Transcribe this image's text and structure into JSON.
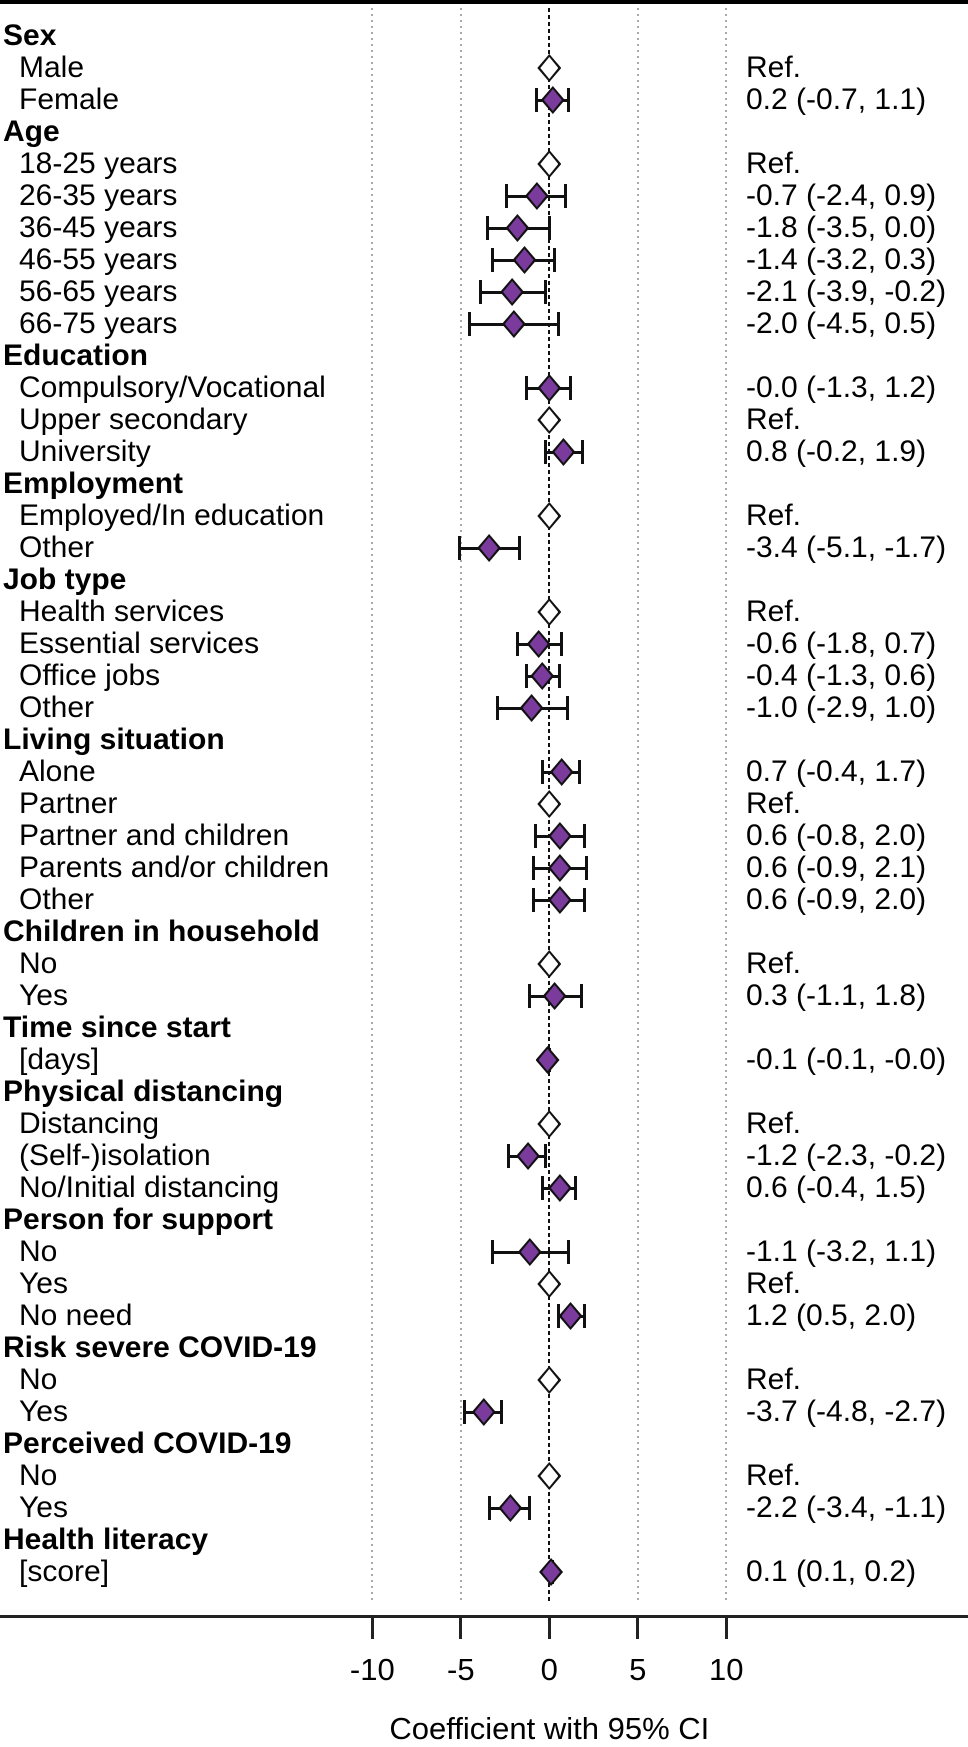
{
  "chart_data": {
    "type": "forest",
    "xlabel": "Coefficient with 95% CI",
    "x_ticks": [
      -10,
      -5,
      0,
      5,
      10
    ],
    "x_tick_labels": [
      "-10",
      "-5",
      "0",
      "5",
      "10"
    ],
    "xlim": [
      -13,
      12
    ],
    "grid": "vertical-dotted",
    "ref_text": "Ref.",
    "colors": {
      "marker_fill": "#7A3B9D",
      "ref_marker_fill": "#ffffff",
      "marker_outline": "#111111",
      "zero_line": "#111111",
      "minor_gridline": "#a9a9a9",
      "axis": "#222222"
    },
    "groups": [
      {
        "label": "Sex",
        "items": [
          {
            "label": "Male",
            "ref": true,
            "text": "Ref."
          },
          {
            "label": "Female",
            "est": 0.2,
            "lo": -0.7,
            "hi": 1.1,
            "text": "0.2 (-0.7, 1.1)"
          }
        ]
      },
      {
        "label": "Age",
        "items": [
          {
            "label": "18-25 years",
            "ref": true,
            "text": "Ref."
          },
          {
            "label": "26-35 years",
            "est": -0.7,
            "lo": -2.4,
            "hi": 0.9,
            "text": "-0.7 (-2.4, 0.9)"
          },
          {
            "label": "36-45 years",
            "est": -1.8,
            "lo": -3.5,
            "hi": 0.0,
            "text": "-1.8 (-3.5, 0.0)"
          },
          {
            "label": "46-55 years",
            "est": -1.4,
            "lo": -3.2,
            "hi": 0.3,
            "text": "-1.4 (-3.2, 0.3)"
          },
          {
            "label": "56-65 years",
            "est": -2.1,
            "lo": -3.9,
            "hi": -0.2,
            "text": "-2.1 (-3.9, -0.2)"
          },
          {
            "label": "66-75 years",
            "est": -2.0,
            "lo": -4.5,
            "hi": 0.5,
            "text": "-2.0 (-4.5, 0.5)"
          }
        ]
      },
      {
        "label": "Education",
        "items": [
          {
            "label": "Compulsory/Vocational",
            "est": 0.0,
            "lo": -1.3,
            "hi": 1.2,
            "text": "-0.0 (-1.3, 1.2)"
          },
          {
            "label": "Upper secondary",
            "ref": true,
            "text": "Ref."
          },
          {
            "label": "University",
            "est": 0.8,
            "lo": -0.2,
            "hi": 1.9,
            "text": "0.8 (-0.2, 1.9)"
          }
        ]
      },
      {
        "label": "Employment",
        "items": [
          {
            "label": "Employed/In education",
            "ref": true,
            "text": "Ref."
          },
          {
            "label": "Other",
            "est": -3.4,
            "lo": -5.1,
            "hi": -1.7,
            "text": "-3.4 (-5.1, -1.7)"
          }
        ]
      },
      {
        "label": "Job type",
        "items": [
          {
            "label": "Health services",
            "ref": true,
            "text": "Ref."
          },
          {
            "label": "Essential services",
            "est": -0.6,
            "lo": -1.8,
            "hi": 0.7,
            "text": "-0.6 (-1.8, 0.7)"
          },
          {
            "label": "Office jobs",
            "est": -0.4,
            "lo": -1.3,
            "hi": 0.6,
            "text": "-0.4 (-1.3, 0.6)"
          },
          {
            "label": "Other",
            "est": -1.0,
            "lo": -2.9,
            "hi": 1.0,
            "text": "-1.0 (-2.9, 1.0)"
          }
        ]
      },
      {
        "label": "Living situation",
        "items": [
          {
            "label": "Alone",
            "est": 0.7,
            "lo": -0.4,
            "hi": 1.7,
            "text": "0.7 (-0.4, 1.7)"
          },
          {
            "label": "Partner",
            "ref": true,
            "text": "Ref."
          },
          {
            "label": "Partner and children",
            "est": 0.6,
            "lo": -0.8,
            "hi": 2.0,
            "text": "0.6 (-0.8, 2.0)"
          },
          {
            "label": "Parents and/or children",
            "est": 0.6,
            "lo": -0.9,
            "hi": 2.1,
            "text": "0.6 (-0.9, 2.1)"
          },
          {
            "label": "Other",
            "est": 0.6,
            "lo": -0.9,
            "hi": 2.0,
            "text": "0.6 (-0.9, 2.0)"
          }
        ]
      },
      {
        "label": "Children in household",
        "items": [
          {
            "label": "No",
            "ref": true,
            "text": "Ref."
          },
          {
            "label": "Yes",
            "est": 0.3,
            "lo": -1.1,
            "hi": 1.8,
            "text": "0.3 (-1.1, 1.8)"
          }
        ]
      },
      {
        "label": "Time since start",
        "items": [
          {
            "label": "[days]",
            "est": -0.1,
            "lo": -0.1,
            "hi": 0.0,
            "text": "-0.1 (-0.1, -0.0)"
          }
        ]
      },
      {
        "label": "Physical distancing",
        "items": [
          {
            "label": "Distancing",
            "ref": true,
            "text": "Ref."
          },
          {
            "label": "(Self-)isolation",
            "est": -1.2,
            "lo": -2.3,
            "hi": -0.2,
            "text": "-1.2 (-2.3, -0.2)"
          },
          {
            "label": "No/Initial distancing",
            "est": 0.6,
            "lo": -0.4,
            "hi": 1.5,
            "text": "0.6 (-0.4, 1.5)"
          }
        ]
      },
      {
        "label": "Person for support",
        "items": [
          {
            "label": "No",
            "est": -1.1,
            "lo": -3.2,
            "hi": 1.1,
            "text": "-1.1 (-3.2, 1.1)"
          },
          {
            "label": "Yes",
            "ref": true,
            "text": "Ref."
          },
          {
            "label": "No need",
            "est": 1.2,
            "lo": 0.5,
            "hi": 2.0,
            "text": "1.2 (0.5, 2.0)"
          }
        ]
      },
      {
        "label": "Risk severe COVID-19",
        "items": [
          {
            "label": "No",
            "ref": true,
            "text": "Ref."
          },
          {
            "label": "Yes",
            "est": -3.7,
            "lo": -4.8,
            "hi": -2.7,
            "text": "-3.7 (-4.8, -2.7)"
          }
        ]
      },
      {
        "label": "Perceived COVID-19",
        "items": [
          {
            "label": "No",
            "ref": true,
            "text": "Ref."
          },
          {
            "label": "Yes",
            "est": -2.2,
            "lo": -3.4,
            "hi": -1.1,
            "text": "-2.2 (-3.4, -1.1)"
          }
        ]
      },
      {
        "label": "Health literacy",
        "items": [
          {
            "label": "[score]",
            "est": 0.1,
            "lo": 0.1,
            "hi": 0.2,
            "text": "0.1 (0.1, 0.2)"
          }
        ]
      }
    ]
  }
}
